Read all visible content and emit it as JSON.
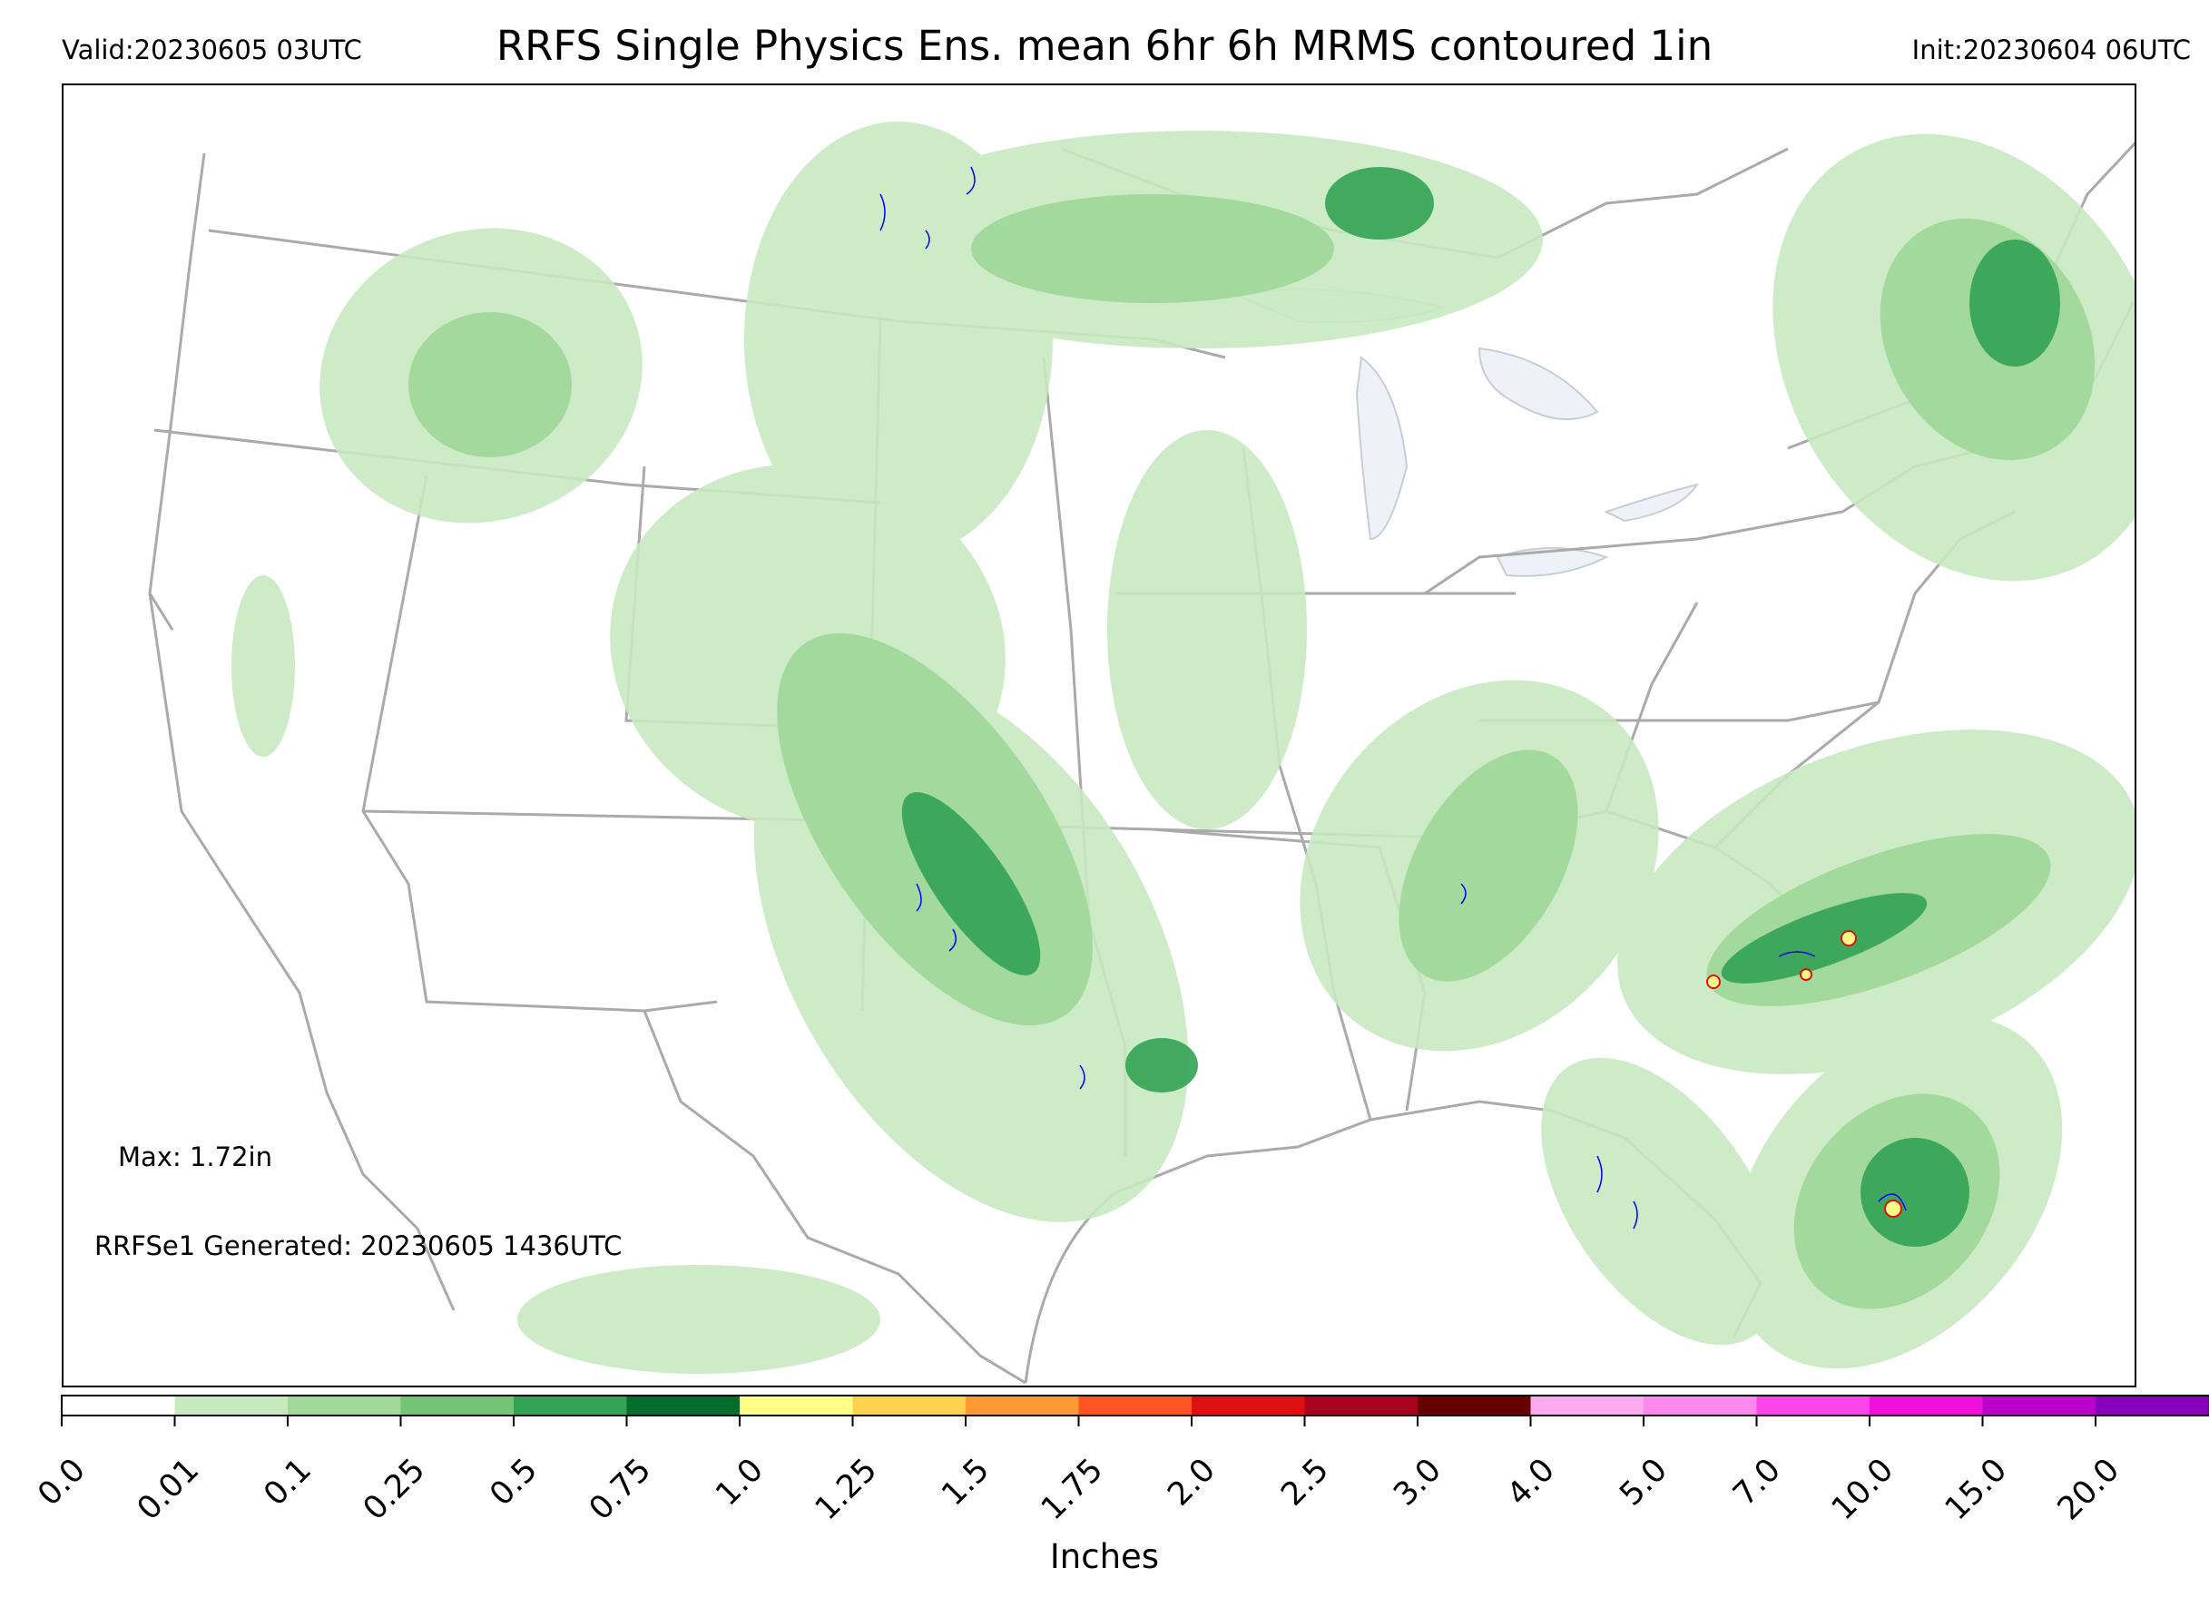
{
  "header": {
    "valid": "Valid:20230605 03UTC",
    "title": "RRFS Single Physics Ens. mean 6hr 6h MRMS contoured 1in",
    "init": "Init:20230604 06UTC"
  },
  "annotations": {
    "max": "Max: 1.72in",
    "generated": "RRFSe1 Generated: 20230605 1436UTC"
  },
  "colorbar": {
    "label": "Inches",
    "ticks": [
      "0.0",
      "0.01",
      "0.1",
      "0.25",
      "0.5",
      "0.75",
      "1.0",
      "1.25",
      "1.5",
      "1.75",
      "2.0",
      "2.5",
      "3.0",
      "4.0",
      "5.0",
      "7.0",
      "10.0",
      "15.0",
      "20.0"
    ],
    "colors": [
      "#ffffff",
      "#c7e9c0",
      "#a1d99b",
      "#74c476",
      "#31a354",
      "#006d2c",
      "#ffff88",
      "#ffd24d",
      "#ff9933",
      "#ff5522",
      "#dd1111",
      "#aa0022",
      "#660000",
      "#ffaaee",
      "#ff88ee",
      "#ff44ee",
      "#ee11dd",
      "#bb00cc",
      "#8800bb"
    ],
    "extend_color": "#330044"
  },
  "map": {
    "land_boundary_color": "#aaaaaa",
    "lakes_color": "#eef2f8",
    "contour_color": "#0000ff",
    "precip_light": "#c7e9c0",
    "precip_mid": "#a1d99b",
    "precip_heavy": "#31a354"
  }
}
